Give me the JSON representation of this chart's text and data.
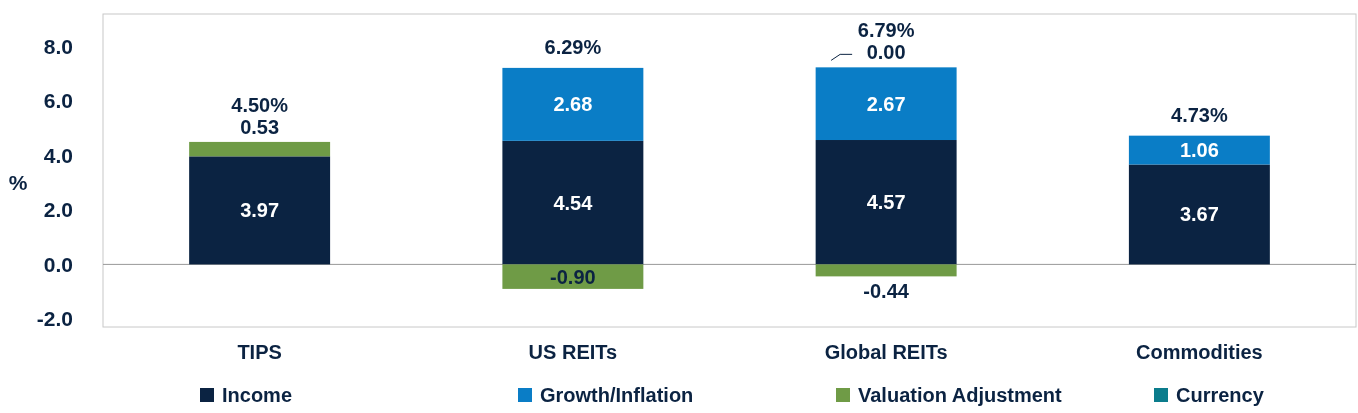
{
  "chart_data": {
    "type": "bar",
    "stacked": true,
    "ylabel": "%",
    "categories": [
      "TIPS",
      "US REITs",
      "Global REITs",
      "Commodities"
    ],
    "series": [
      {
        "name": "Income",
        "color": "#0b2342",
        "values": [
          3.97,
          4.54,
          4.57,
          3.67
        ],
        "value_labels": [
          "3.97",
          "4.54",
          "4.57",
          "3.67"
        ]
      },
      {
        "name": "Growth/Inflation",
        "color": "#0a7dc6",
        "values": [
          0,
          2.68,
          2.67,
          1.06
        ],
        "value_labels": [
          null,
          "2.68",
          "2.67",
          "1.06"
        ]
      },
      {
        "name": "Valuation Adjustment",
        "color": "#6f9b46",
        "values": [
          0.53,
          -0.9,
          -0.44,
          0
        ],
        "value_labels": [
          "0.53",
          "-0.90",
          "-0.44",
          null
        ]
      },
      {
        "name": "Currency",
        "color": "#0b7c8c",
        "values": [
          0,
          0,
          0,
          0
        ],
        "value_labels": [
          null,
          null,
          "0.00",
          null
        ]
      }
    ],
    "annotations": [
      {
        "text": "4.50%",
        "x": "TIPS",
        "y": 4.5
      },
      {
        "text": "6.29%",
        "x": "US REITs",
        "y": 7.22
      },
      {
        "text": "6.79%",
        "x": "Global REITs",
        "y": 7.24
      },
      {
        "text": "4.73%",
        "x": "Commodities",
        "y": 4.73
      }
    ],
    "ylim": [
      -2.3,
      9.2
    ],
    "yticks": [
      {
        "value": -2,
        "label": "-2.0"
      },
      {
        "value": 0,
        "label": "0.0"
      },
      {
        "value": 2,
        "label": "2.0"
      },
      {
        "value": 4,
        "label": "4.0"
      },
      {
        "value": 6,
        "label": "6.0"
      },
      {
        "value": 8,
        "label": "8.0"
      }
    ],
    "ref_lines": [
      {
        "axis": "y",
        "value": 0,
        "color": "#999999"
      }
    ],
    "grid": false,
    "legend": "bottom"
  }
}
